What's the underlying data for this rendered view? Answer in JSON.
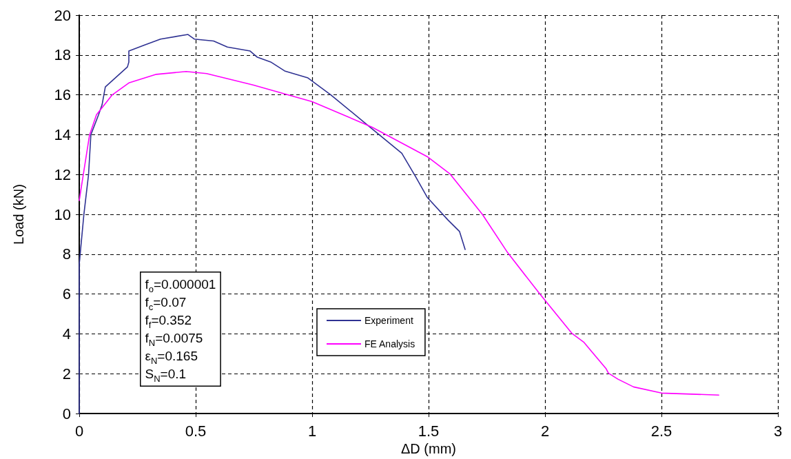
{
  "chart_data": {
    "type": "line",
    "xlabel": "ΔD (mm)",
    "ylabel": "Load (kN)",
    "xlim": [
      0,
      3
    ],
    "xticks": [
      0,
      0.5,
      1,
      1.5,
      2,
      2.5,
      3
    ],
    "ylim": [
      0,
      20
    ],
    "yticks": [
      0,
      2,
      4,
      6,
      8,
      10,
      12,
      14,
      16,
      18,
      20
    ],
    "grid": true,
    "legend": "bottom",
    "marker": "none",
    "line_style": "solid",
    "annotations": [
      "f$_{o}$=0.000001",
      "f$_{c}$=0.07",
      "f$_{f}$=0.352",
      "f$_{N}$=0.0075",
      "ε$_{N}$=0.165",
      "S$_{N}$=0.1"
    ],
    "series": [
      {
        "name": "Experiment",
        "color": "#2e3192",
        "x": [
          0,
          0,
          0.02,
          0.04,
          0.05,
          0.083,
          0.098,
          0.112,
          0.207,
          0.213,
          0.213,
          0.281,
          0.349,
          0.467,
          0.494,
          0.577,
          0.636,
          0.734,
          0.763,
          0.822,
          0.882,
          0.982,
          1.08,
          1.257,
          1.385,
          1.444,
          1.494,
          1.583,
          1.633,
          1.657
        ],
        "values": [
          0,
          7.5,
          10,
          12,
          14,
          15,
          15.5,
          16.4,
          17.4,
          17.65,
          18.2,
          18.5,
          18.8,
          19.03,
          18.8,
          18.7,
          18.4,
          18.2,
          17.9,
          17.65,
          17.2,
          16.85,
          16,
          14.3,
          13.07,
          11.9,
          10.86,
          9.72,
          9.14,
          8.24
        ]
      },
      {
        "name": "FE Analysis",
        "color": "#ff00ff",
        "x": [
          0,
          0.044,
          0.074,
          0.142,
          0.213,
          0.331,
          0.459,
          0.547,
          0.746,
          1.0,
          1.257,
          1.494,
          1.592,
          1.731,
          1.84,
          1.976,
          2.115,
          2.166,
          2.263,
          2.272,
          2.313,
          2.38,
          2.5,
          2.746
        ],
        "values": [
          10.7,
          13.97,
          15,
          16,
          16.6,
          17.03,
          17.17,
          17.07,
          16.5,
          15.66,
          14.38,
          12.9,
          12.03,
          10,
          8.07,
          6.03,
          4.03,
          3.59,
          2.24,
          2.03,
          1.73,
          1.34,
          1.03,
          0.93
        ]
      }
    ]
  }
}
